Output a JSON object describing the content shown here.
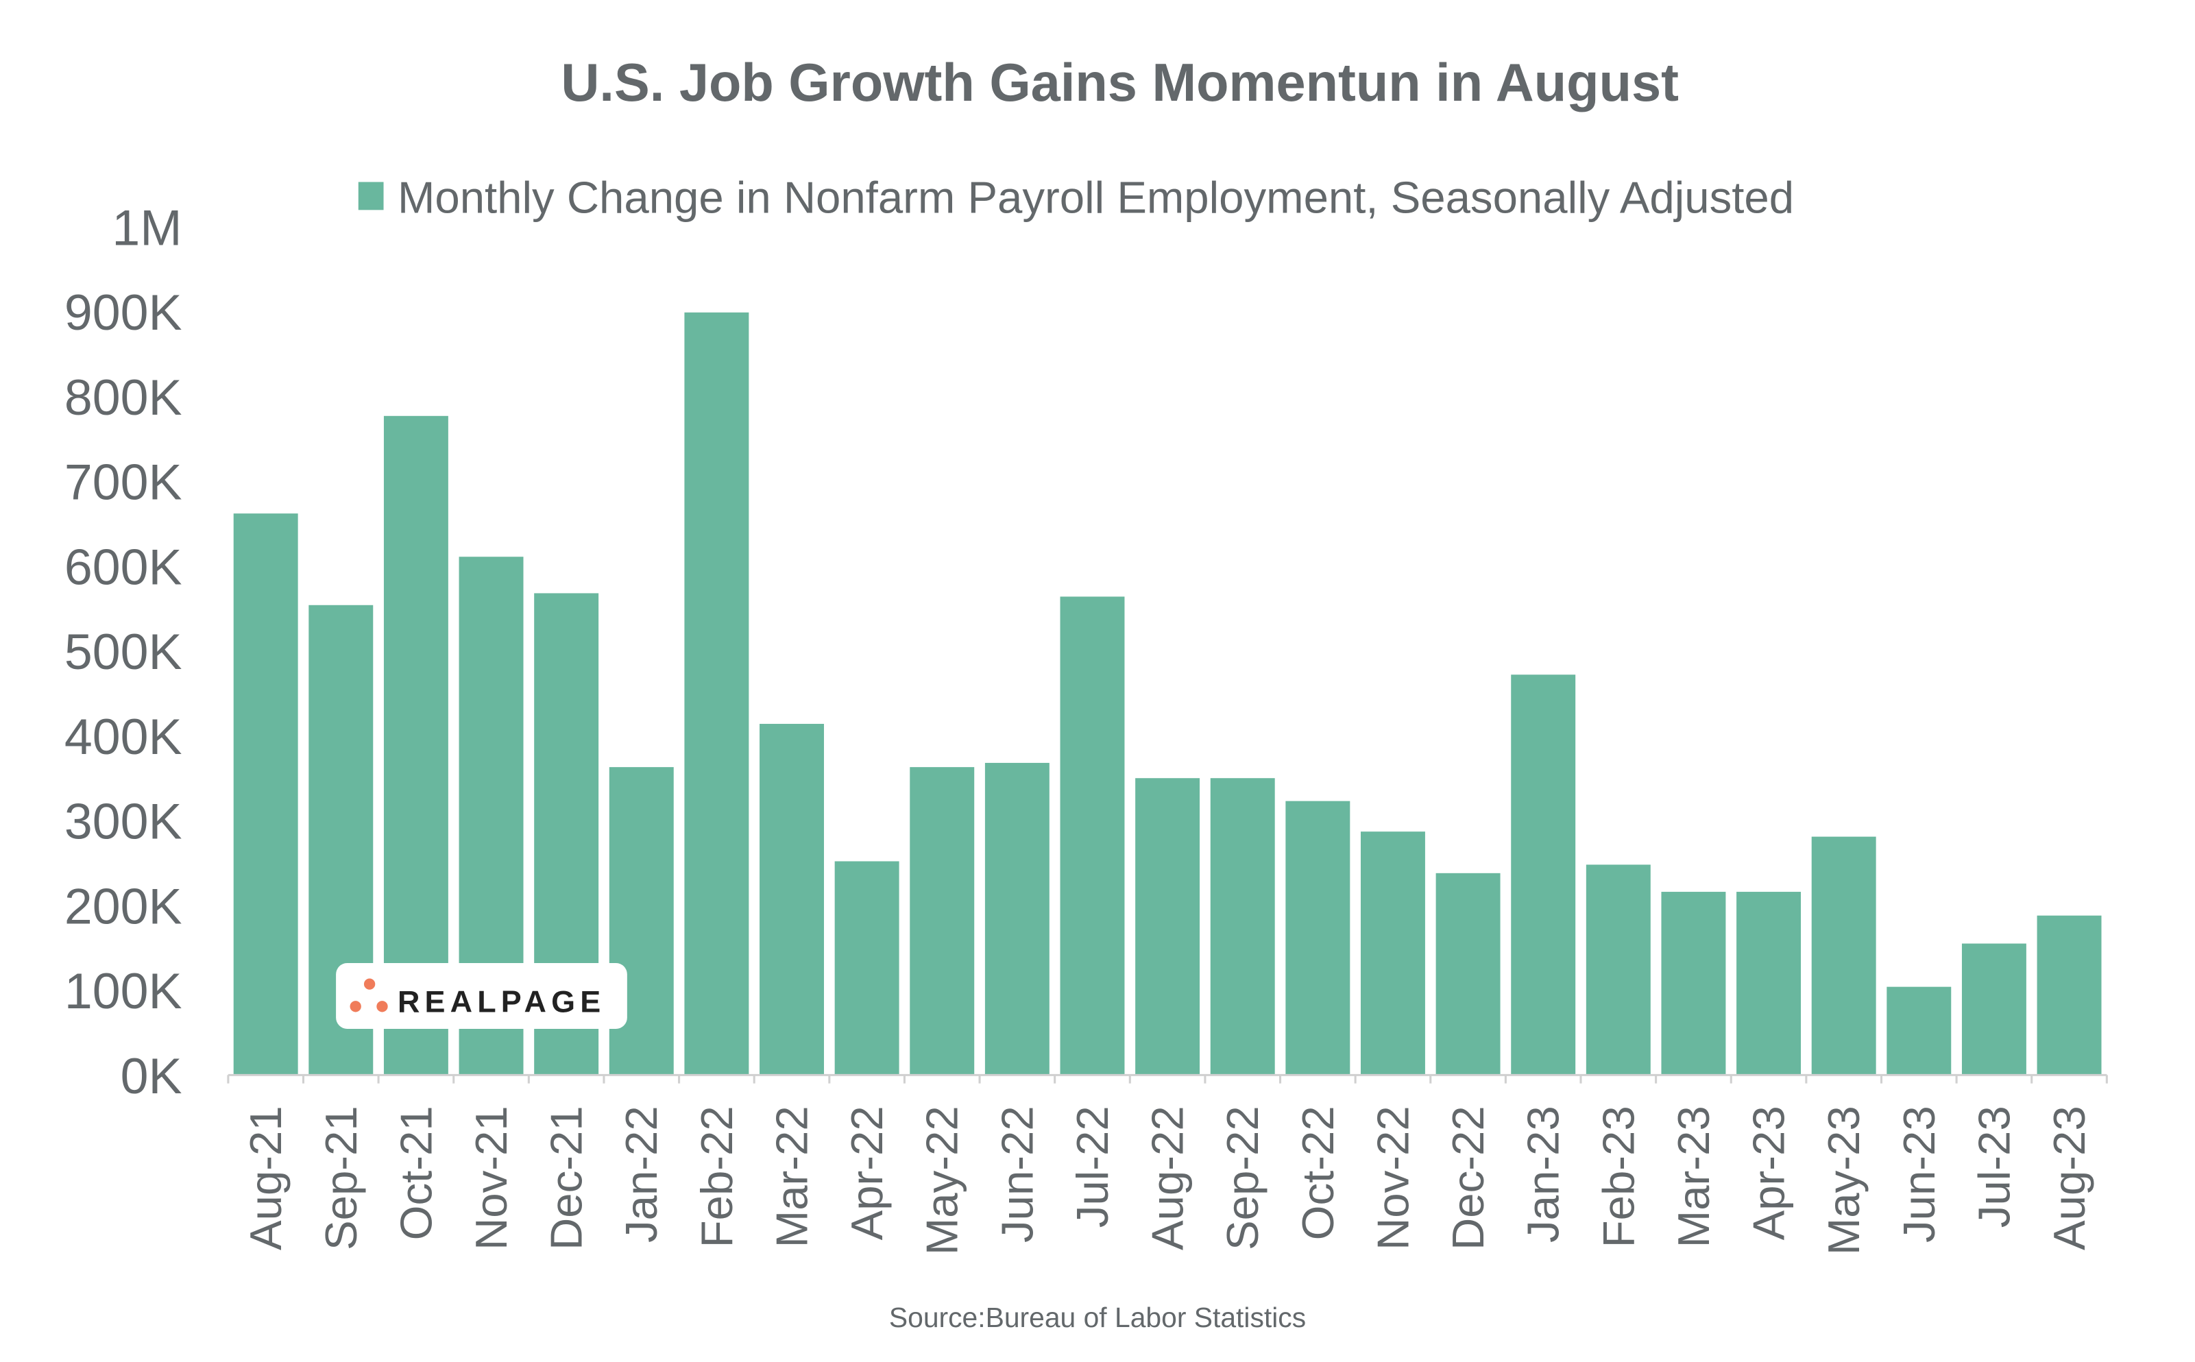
{
  "chart_data": {
    "type": "bar",
    "title": "U.S. Job Growth Gains Momentun in August",
    "xlabel": "",
    "ylabel": "",
    "ylim": [
      0,
      1000000
    ],
    "yticks": [
      0,
      100000,
      200000,
      300000,
      400000,
      500000,
      600000,
      700000,
      800000,
      900000,
      1000000
    ],
    "ytick_labels": [
      "0K",
      "100K",
      "200K",
      "300K",
      "400K",
      "500K",
      "600K",
      "700K",
      "800K",
      "900K",
      "1M"
    ],
    "grid": false,
    "legend_position": "top",
    "categories": [
      "Aug-21",
      "Sep-21",
      "Oct-21",
      "Nov-21",
      "Dec-21",
      "Jan-22",
      "Feb-22",
      "Mar-22",
      "Apr-22",
      "May-22",
      "Jun-22",
      "Jul-22",
      "Aug-22",
      "Sep-22",
      "Oct-22",
      "Nov-22",
      "Dec-22",
      "Jan-23",
      "Feb-23",
      "Mar-23",
      "Apr-23",
      "May-23",
      "Jun-23",
      "Jul-23",
      "Aug-23"
    ],
    "series": [
      {
        "name": "Monthly Change in Nonfarm Payroll Employment, Seasonally Adjusted",
        "color": "#69B79E",
        "values": [
          662000,
          554000,
          777000,
          611000,
          568000,
          363000,
          899000,
          414000,
          252000,
          363000,
          368000,
          564000,
          350000,
          350000,
          323000,
          287000,
          238000,
          472000,
          248000,
          216000,
          216000,
          281000,
          104000,
          155000,
          188000
        ]
      }
    ],
    "source": "Source:Bureau of Labor Statistics"
  },
  "logo": {
    "text": "REALPAGE",
    "dot_color": "#F07C5A"
  },
  "colors": {
    "text": "#63686B",
    "bar": "#69B79E",
    "axis": "#D0D0D0"
  }
}
